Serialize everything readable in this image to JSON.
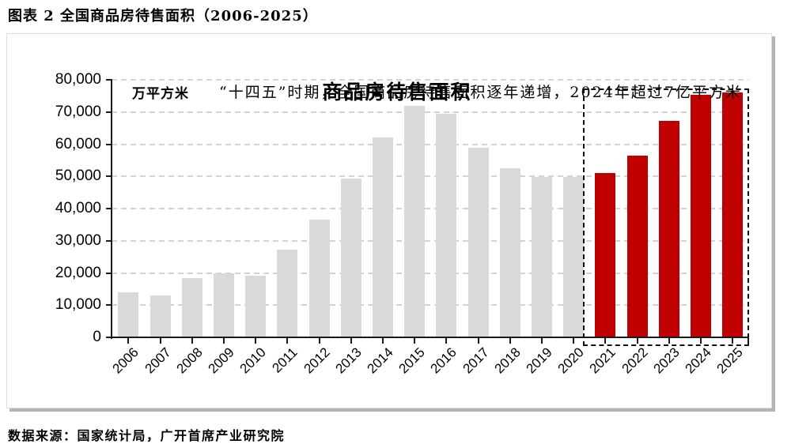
{
  "page": {
    "figure_caption": "图表 2 全国商品房待售面积（2006-2025）",
    "data_source": "数据来源：国家统计局，广开首席产业研究院"
  },
  "chart_data": {
    "type": "bar",
    "title": "商品房待售面积",
    "unit_label": "万平方米",
    "annotation": "“十四五”时期，全国商品房待售面积逐年递增，2024年超过7亿平方米",
    "categories": [
      "2006",
      "2007",
      "2008",
      "2009",
      "2010",
      "2011",
      "2012",
      "2013",
      "2014",
      "2015",
      "2016",
      "2017",
      "2018",
      "2019",
      "2020",
      "2021",
      "2022",
      "2023",
      "2024",
      "2025"
    ],
    "values": [
      14000,
      13100,
      18400,
      19900,
      19100,
      27194,
      36460,
      49295,
      62169,
      71853,
      69539,
      58923,
      52414,
      49821,
      49850,
      51023,
      56366,
      67295,
      75327,
      76000
    ],
    "ylim": [
      0,
      80000
    ],
    "ytick_interval": 10000,
    "ytick_labels": [
      "0",
      "10,000",
      "20,000",
      "30,000",
      "40,000",
      "50,000",
      "60,000",
      "70,000",
      "80,000"
    ],
    "grid": "horizontal-dashed",
    "legend": "none",
    "highlight": {
      "categories": [
        "2021",
        "2022",
        "2023",
        "2024",
        "2025"
      ],
      "style": "dashed-box"
    },
    "colors": {
      "bar_default": "#D9D9D9",
      "bar_highlight": "#C00000",
      "gridline": "#D2D2D2",
      "axis": "#1A1A1A"
    }
  }
}
